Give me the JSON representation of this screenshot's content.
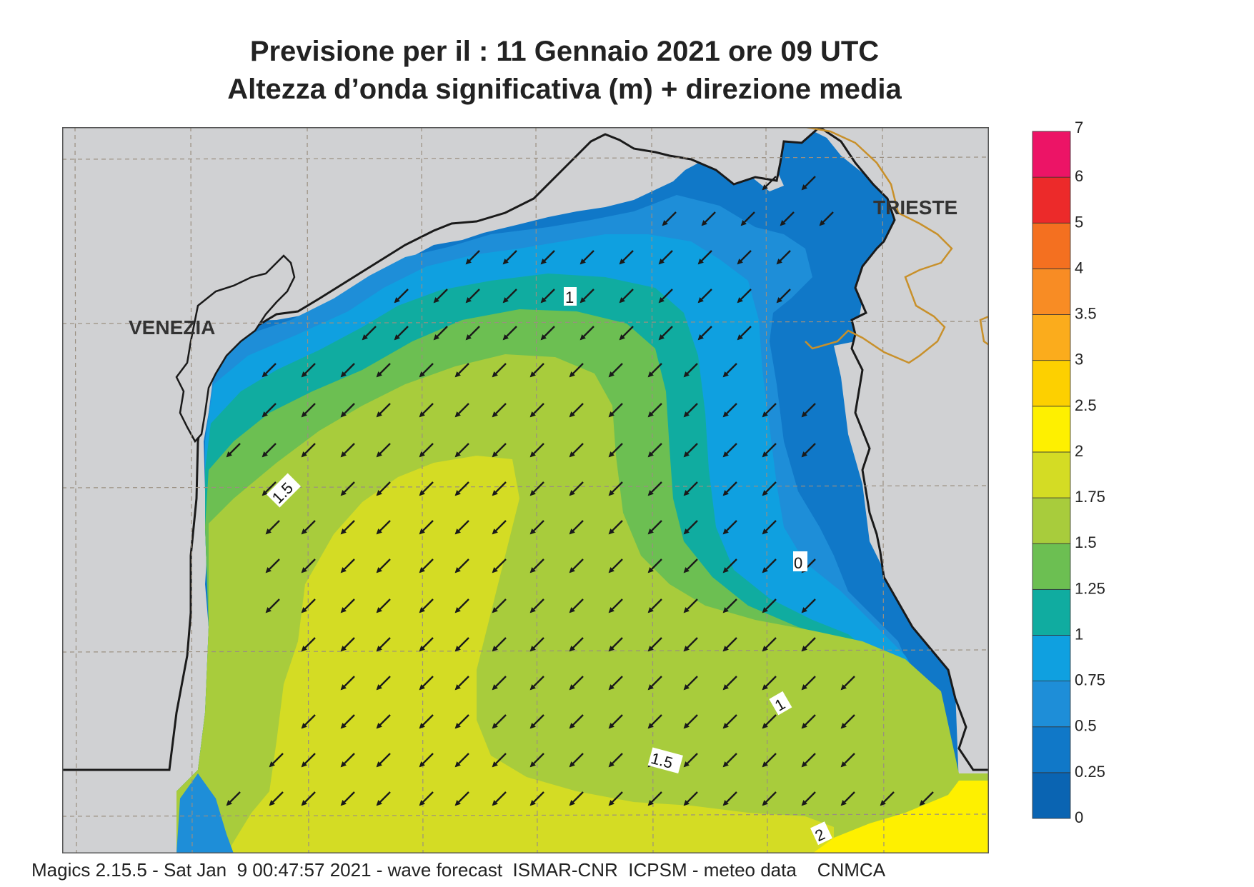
{
  "header": {
    "title_line1": "Previsione per il  :  11  Gennaio  2021   ore 09 UTC",
    "title_line2": "Altezza d’onda significativa (m) + direzione media"
  },
  "map": {
    "places": [
      {
        "name": "VENEZIA"
      },
      {
        "name": "TRIESTE"
      }
    ],
    "contour_labels": [
      "1",
      "1.5",
      "0",
      "1",
      "1.5",
      "2"
    ],
    "arrow_direction": "south-west",
    "land_color": "#d0d1d3",
    "coast_color": "#1a1a1a",
    "border_color": "#c8902a",
    "grid_color": "#9a8f80"
  },
  "legend": {
    "title": "",
    "levels": [
      "0",
      "0.25",
      "0.5",
      "0.75",
      "1",
      "1.25",
      "1.5",
      "1.75",
      "2",
      "2.5",
      "3",
      "3.5",
      "4",
      "5",
      "6",
      "7"
    ],
    "colors": [
      "#0a64b2",
      "#1078c8",
      "#1e8ed8",
      "#0fa0e0",
      "#10aca0",
      "#6cbf52",
      "#a8cc3c",
      "#d4dc24",
      "#fef000",
      "#fdd000",
      "#fbac1c",
      "#f88c24",
      "#f47020",
      "#ec2a2a",
      "#ec1466"
    ]
  },
  "footer": {
    "text": "Magics 2.15.5 - Sat Jan  9 00:47:57 2021 - wave forecast  ISMAR-CNR  ICPSM - meteo data    CNMCA"
  }
}
